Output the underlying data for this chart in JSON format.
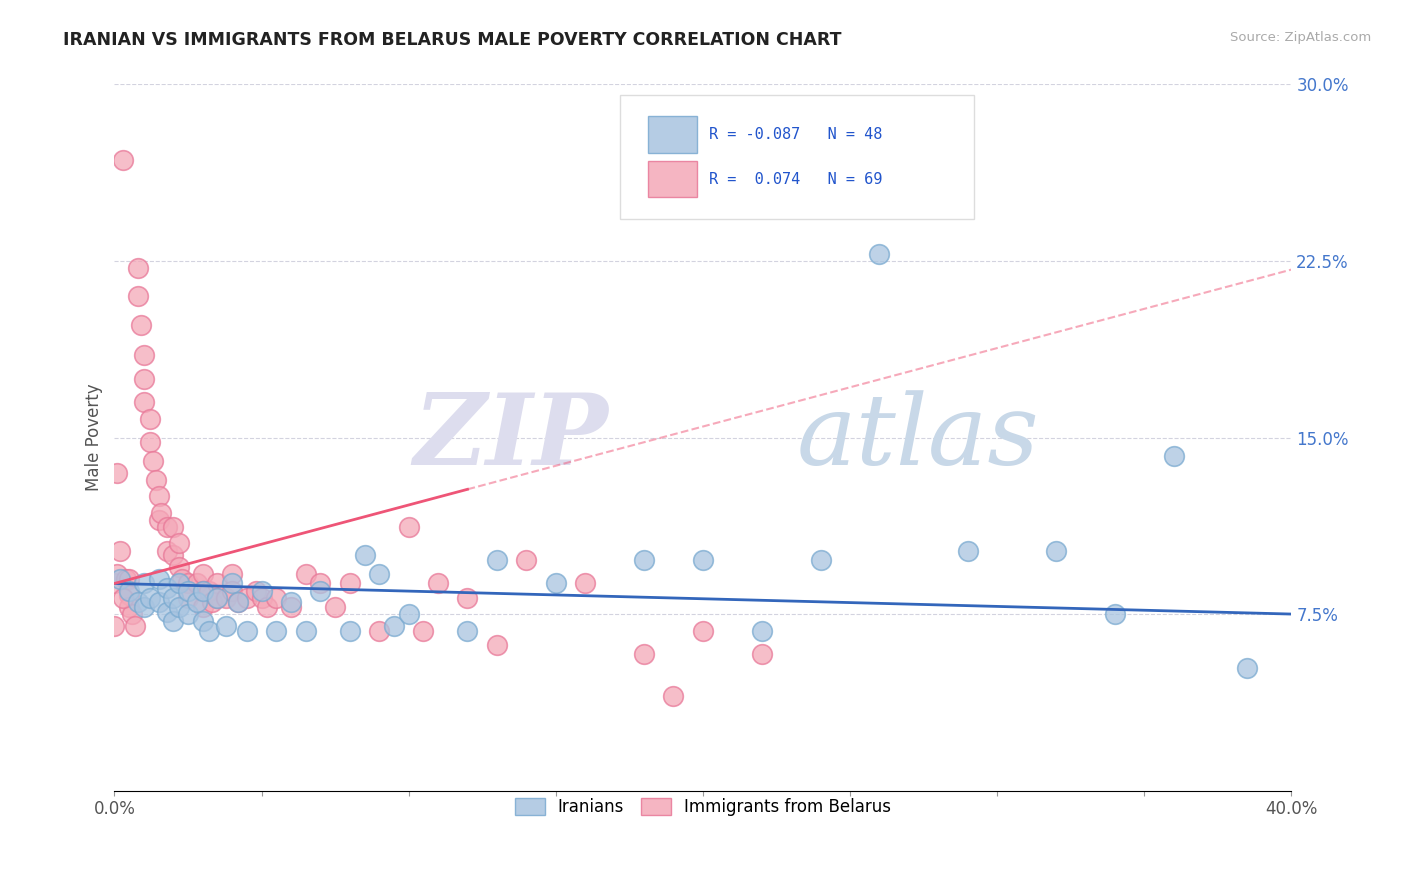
{
  "title": "IRANIAN VS IMMIGRANTS FROM BELARUS MALE POVERTY CORRELATION CHART",
  "source": "Source: ZipAtlas.com",
  "ylabel": "Male Poverty",
  "xlim": [
    0,
    0.4
  ],
  "ylim": [
    0,
    0.3
  ],
  "ytick_positions": [
    0.075,
    0.15,
    0.225,
    0.3
  ],
  "ytick_labels": [
    "7.5%",
    "15.0%",
    "22.5%",
    "30.0%"
  ],
  "blue_R": -0.087,
  "blue_N": 48,
  "pink_R": 0.074,
  "pink_N": 69,
  "blue_color": "#A8C4E0",
  "pink_color": "#F4A8B8",
  "blue_edge_color": "#7AAAD0",
  "pink_edge_color": "#E87898",
  "blue_line_color": "#3366BB",
  "pink_line_color": "#EE5577",
  "legend_label_blue": "Iranians",
  "legend_label_pink": "Immigrants from Belarus",
  "blue_points_x": [
    0.002,
    0.005,
    0.008,
    0.01,
    0.01,
    0.012,
    0.015,
    0.015,
    0.018,
    0.018,
    0.02,
    0.02,
    0.022,
    0.022,
    0.025,
    0.025,
    0.028,
    0.03,
    0.03,
    0.032,
    0.035,
    0.038,
    0.04,
    0.042,
    0.045,
    0.05,
    0.055,
    0.06,
    0.065,
    0.07,
    0.08,
    0.085,
    0.09,
    0.095,
    0.1,
    0.12,
    0.13,
    0.15,
    0.18,
    0.2,
    0.22,
    0.24,
    0.26,
    0.29,
    0.32,
    0.34,
    0.36,
    0.385
  ],
  "blue_points_y": [
    0.09,
    0.085,
    0.08,
    0.088,
    0.078,
    0.082,
    0.09,
    0.08,
    0.086,
    0.076,
    0.082,
    0.072,
    0.088,
    0.078,
    0.085,
    0.075,
    0.08,
    0.085,
    0.072,
    0.068,
    0.082,
    0.07,
    0.088,
    0.08,
    0.068,
    0.085,
    0.068,
    0.08,
    0.068,
    0.085,
    0.068,
    0.1,
    0.092,
    0.07,
    0.075,
    0.068,
    0.098,
    0.088,
    0.098,
    0.098,
    0.068,
    0.098,
    0.228,
    0.102,
    0.102,
    0.075,
    0.142,
    0.052
  ],
  "pink_points_x": [
    0.0,
    0.001,
    0.002,
    0.003,
    0.004,
    0.005,
    0.005,
    0.005,
    0.006,
    0.007,
    0.008,
    0.008,
    0.009,
    0.01,
    0.01,
    0.01,
    0.012,
    0.012,
    0.013,
    0.014,
    0.015,
    0.015,
    0.016,
    0.018,
    0.018,
    0.02,
    0.02,
    0.022,
    0.022,
    0.023,
    0.025,
    0.025,
    0.028,
    0.03,
    0.03,
    0.03,
    0.032,
    0.033,
    0.035,
    0.035,
    0.038,
    0.04,
    0.04,
    0.042,
    0.045,
    0.048,
    0.05,
    0.052,
    0.055,
    0.06,
    0.065,
    0.07,
    0.075,
    0.08,
    0.09,
    0.1,
    0.105,
    0.11,
    0.12,
    0.13,
    0.14,
    0.16,
    0.18,
    0.19,
    0.2,
    0.22,
    0.0,
    0.001,
    0.003
  ],
  "pink_points_y": [
    0.088,
    0.092,
    0.102,
    0.268,
    0.09,
    0.09,
    0.083,
    0.078,
    0.075,
    0.07,
    0.222,
    0.21,
    0.198,
    0.185,
    0.175,
    0.165,
    0.158,
    0.148,
    0.14,
    0.132,
    0.125,
    0.115,
    0.118,
    0.112,
    0.102,
    0.112,
    0.1,
    0.105,
    0.095,
    0.09,
    0.088,
    0.082,
    0.088,
    0.092,
    0.085,
    0.078,
    0.085,
    0.08,
    0.088,
    0.082,
    0.082,
    0.092,
    0.085,
    0.08,
    0.082,
    0.085,
    0.082,
    0.078,
    0.082,
    0.078,
    0.092,
    0.088,
    0.078,
    0.088,
    0.068,
    0.112,
    0.068,
    0.088,
    0.082,
    0.062,
    0.098,
    0.088,
    0.058,
    0.04,
    0.068,
    0.058,
    0.07,
    0.135,
    0.082
  ]
}
